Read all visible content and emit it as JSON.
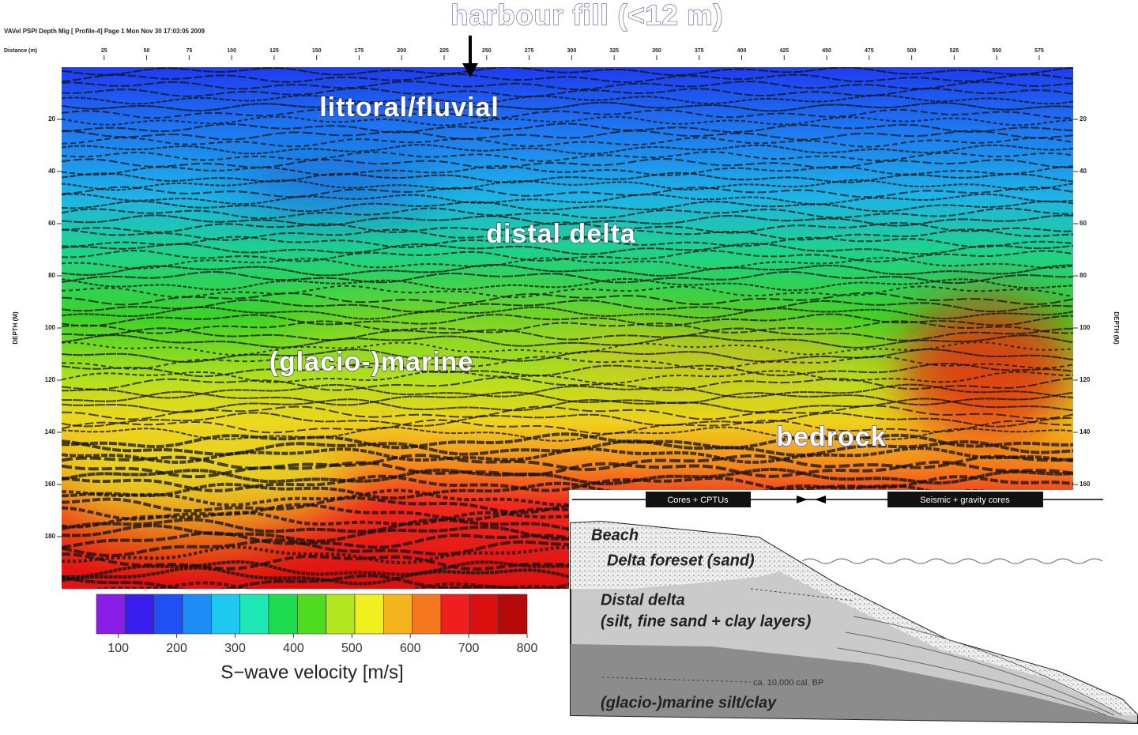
{
  "header": {
    "title": "VAVel PSPI Depth Mig [ Profile-4] Page 1 Mon Nov 30 17:03:05 2009",
    "distance_label": "Distance (m)",
    "distance_lim": [
      0,
      595
    ],
    "distance_ticks": [
      25,
      50,
      75,
      100,
      125,
      150,
      175,
      200,
      225,
      250,
      275,
      300,
      325,
      350,
      375,
      400,
      425,
      450,
      475,
      500,
      525,
      550,
      575
    ],
    "depth_label": "DEPTH (M)",
    "depth_lim": [
      0,
      200
    ],
    "depth_ticks_left": [
      20,
      40,
      60,
      80,
      100,
      120,
      140,
      160,
      180
    ],
    "depth_ticks_right": [
      20,
      40,
      60,
      80,
      100,
      120,
      140,
      160
    ]
  },
  "annotations": {
    "harbour_fill": "harbour fill (<12 m)",
    "littoral": "littoral/fluvial",
    "distal": "distal delta",
    "marine": "(glacio-)marine",
    "bedrock": "bedrock"
  },
  "colorbar": {
    "label": "S−wave velocity [m/s]",
    "lim": [
      62.5,
      800
    ],
    "ticks": [
      100,
      200,
      300,
      400,
      500,
      600,
      700,
      800
    ],
    "colors": [
      "#8a1ee6",
      "#3a1ef0",
      "#1e50f5",
      "#1e8cf5",
      "#1ec8f0",
      "#1ee6b4",
      "#1edc50",
      "#50dc1e",
      "#b4e61e",
      "#f0f01e",
      "#f5b41e",
      "#f5781e",
      "#f01e1e",
      "#dc0f0f",
      "#b40a0a"
    ]
  },
  "schematic": {
    "cores": "Cores +  CPTUs",
    "seismic": "Seismic + gravity cores",
    "beach": "Beach",
    "foreset": "Delta foreset (sand)",
    "distal": "Distal delta",
    "distal_sub": "(silt, fine sand + clay layers)",
    "age": "ca. 10,000 cal. BP",
    "marine": "(glacio-)marine silt/clay"
  }
}
